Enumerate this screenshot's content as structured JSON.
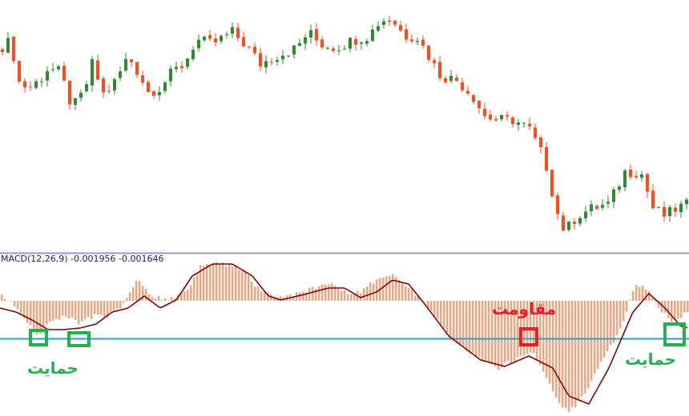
{
  "chart_data": [
    {
      "type": "candlestick",
      "note_axes": "no price axis shown",
      "price_path": [
        [
          0,
          260
        ],
        [
          15,
          270
        ],
        [
          20,
          220
        ],
        [
          35,
          210
        ],
        [
          50,
          220
        ],
        [
          60,
          235
        ],
        [
          75,
          230
        ],
        [
          90,
          185
        ],
        [
          105,
          205
        ],
        [
          115,
          240
        ],
        [
          130,
          200
        ],
        [
          145,
          220
        ],
        [
          160,
          250
        ],
        [
          175,
          225
        ],
        [
          185,
          205
        ],
        [
          200,
          210
        ],
        [
          215,
          230
        ],
        [
          230,
          240
        ],
        [
          245,
          270
        ],
        [
          265,
          265
        ],
        [
          290,
          280
        ],
        [
          310,
          260
        ],
        [
          325,
          240
        ],
        [
          345,
          250
        ],
        [
          370,
          260
        ],
        [
          385,
          280
        ],
        [
          400,
          265
        ],
        [
          420,
          260
        ],
        [
          440,
          270
        ],
        [
          460,
          275
        ],
        [
          475,
          295
        ],
        [
          490,
          295
        ],
        [
          505,
          275
        ],
        [
          520,
          275
        ],
        [
          535,
          250
        ],
        [
          550,
          225
        ],
        [
          570,
          220
        ],
        [
          590,
          200
        ],
        [
          605,
          175
        ],
        [
          620,
          170
        ],
        [
          640,
          170
        ],
        [
          660,
          160
        ],
        [
          680,
          120
        ],
        [
          695,
          55
        ],
        [
          705,
          30
        ],
        [
          720,
          50
        ],
        [
          740,
          60
        ],
        [
          760,
          65
        ],
        [
          780,
          105
        ],
        [
          800,
          105
        ],
        [
          815,
          60
        ],
        [
          830,
          50
        ],
        [
          845,
          60
        ],
        [
          860,
          65
        ]
      ],
      "colors": {
        "up": "#2e8b2e",
        "down": "#ff4a1c"
      }
    },
    {
      "type": "bar+line",
      "indicator_label": "MACD(12,26,9) -0.001956 -0.001646",
      "histogram": [
        [
          0,
          6
        ],
        [
          20,
          -9
        ],
        [
          45,
          -44
        ],
        [
          60,
          -24
        ],
        [
          80,
          -19
        ],
        [
          100,
          -29
        ],
        [
          115,
          -19
        ],
        [
          130,
          -19
        ],
        [
          150,
          -9
        ],
        [
          170,
          26
        ],
        [
          190,
          6
        ],
        [
          210,
          1
        ],
        [
          235,
          16
        ],
        [
          250,
          46
        ],
        [
          270,
          48
        ],
        [
          300,
          41
        ],
        [
          320,
          16
        ],
        [
          340,
          4
        ],
        [
          360,
          6
        ],
        [
          390,
          16
        ],
        [
          410,
          21
        ],
        [
          440,
          6
        ],
        [
          470,
          26
        ],
        [
          490,
          31
        ],
        [
          510,
          16
        ],
        [
          530,
          -4
        ],
        [
          560,
          -44
        ],
        [
          590,
          -69
        ],
        [
          620,
          -84
        ],
        [
          650,
          -69
        ],
        [
          665,
          -64
        ],
        [
          680,
          -94
        ],
        [
          700,
          -134
        ],
        [
          710,
          -139
        ],
        [
          730,
          -114
        ],
        [
          750,
          -74
        ],
        [
          770,
          -44
        ],
        [
          790,
          16
        ],
        [
          800,
          21
        ],
        [
          815,
          1
        ],
        [
          835,
          -24
        ],
        [
          850,
          -19
        ],
        [
          860,
          -9
        ]
      ],
      "signal": [
        [
          0,
          -9
        ],
        [
          20,
          -14
        ],
        [
          40,
          -24
        ],
        [
          60,
          -36
        ],
        [
          80,
          -36
        ],
        [
          100,
          -34
        ],
        [
          120,
          -29
        ],
        [
          140,
          -14
        ],
        [
          160,
          -9
        ],
        [
          180,
          6
        ],
        [
          200,
          -9
        ],
        [
          220,
          1
        ],
        [
          240,
          31
        ],
        [
          265,
          46
        ],
        [
          290,
          46
        ],
        [
          315,
          31
        ],
        [
          335,
          6
        ],
        [
          350,
          1
        ],
        [
          380,
          8
        ],
        [
          410,
          16
        ],
        [
          430,
          16
        ],
        [
          450,
          4
        ],
        [
          470,
          11
        ],
        [
          490,
          26
        ],
        [
          510,
          21
        ],
        [
          530,
          -4
        ],
        [
          560,
          -44
        ],
        [
          600,
          -74
        ],
        [
          630,
          -82
        ],
        [
          660,
          -69
        ],
        [
          690,
          -84
        ],
        [
          710,
          -119
        ],
        [
          735,
          -129
        ],
        [
          760,
          -84
        ],
        [
          790,
          -14
        ],
        [
          810,
          9
        ],
        [
          830,
          -9
        ],
        [
          850,
          -32
        ],
        [
          860,
          -34
        ]
      ],
      "colors": {
        "histogram": "#ff9f7a",
        "signal": "#7a0a0a",
        "level_line": "#1a9fe0"
      }
    }
  ],
  "annotations": {
    "support_label": "حمایت",
    "resistance_label": "مقاومت",
    "support_color": "#22b14c",
    "resistance_color": "#ed1c24"
  }
}
